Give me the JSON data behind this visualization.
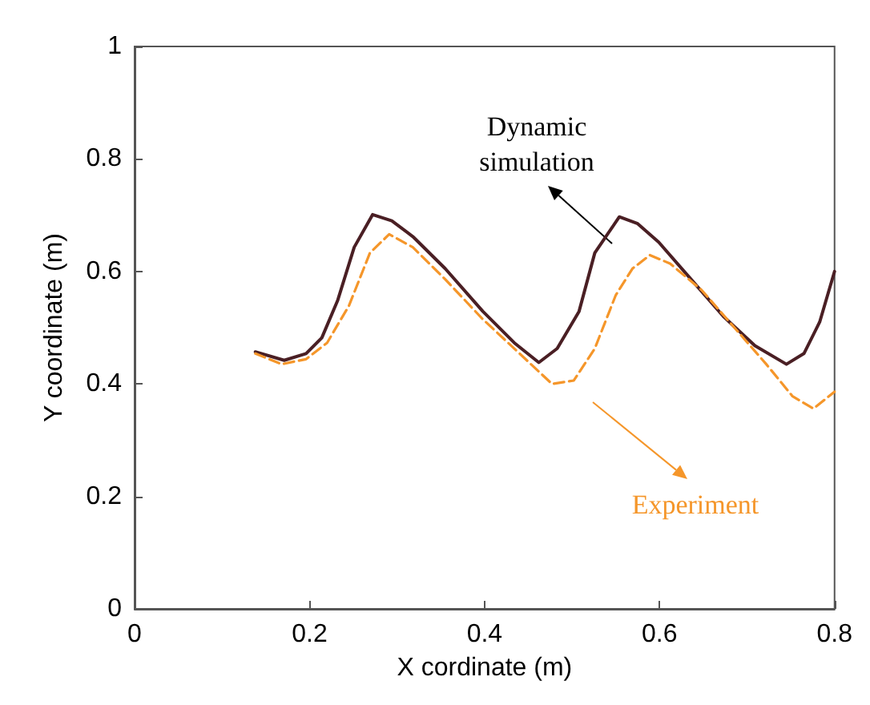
{
  "chart_data": {
    "type": "line",
    "xlabel": "X cordinate (m)",
    "ylabel": "Y coordinate (m)",
    "annotations": [
      "Dynamic\nsimulation",
      "Experiment"
    ],
    "xlim": [
      0,
      0.8
    ],
    "xticks": [
      0,
      0.2,
      0.4,
      0.6,
      0.8
    ],
    "ylim": [
      0,
      1
    ],
    "yticks": [
      0,
      0.2,
      0.4,
      0.6,
      0.8,
      1
    ],
    "marker": "none",
    "series": [
      {
        "color": "#4a1f24",
        "line_style": "solid",
        "x": [
          0.138,
          0.171,
          0.196,
          0.214,
          0.232,
          0.251,
          0.272,
          0.294,
          0.318,
          0.355,
          0.398,
          0.434,
          0.462,
          0.483,
          0.508,
          0.526,
          0.554,
          0.575,
          0.599,
          0.636,
          0.673,
          0.709,
          0.745,
          0.765,
          0.783,
          0.8
        ],
        "values": [
          0.457,
          0.442,
          0.454,
          0.482,
          0.548,
          0.643,
          0.701,
          0.69,
          0.662,
          0.605,
          0.529,
          0.473,
          0.438,
          0.463,
          0.529,
          0.633,
          0.697,
          0.685,
          0.652,
          0.586,
          0.52,
          0.468,
          0.435,
          0.454,
          0.51,
          0.6
        ]
      },
      {
        "color": "#f5962a",
        "line_style": "dashed",
        "x": [
          0.138,
          0.168,
          0.196,
          0.22,
          0.245,
          0.269,
          0.291,
          0.318,
          0.355,
          0.398,
          0.44,
          0.477,
          0.502,
          0.526,
          0.55,
          0.569,
          0.589,
          0.612,
          0.648,
          0.685,
          0.722,
          0.752,
          0.776,
          0.8
        ],
        "values": [
          0.454,
          0.435,
          0.444,
          0.473,
          0.539,
          0.633,
          0.666,
          0.643,
          0.586,
          0.515,
          0.454,
          0.4,
          0.406,
          0.463,
          0.558,
          0.605,
          0.629,
          0.614,
          0.567,
          0.501,
          0.435,
          0.378,
          0.356,
          0.386
        ]
      }
    ]
  }
}
